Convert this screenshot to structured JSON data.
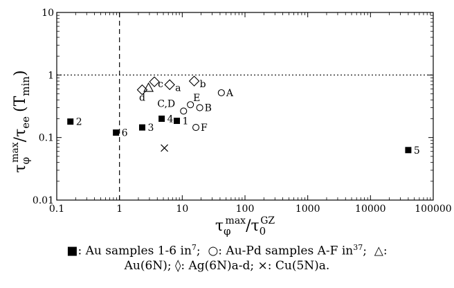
{
  "chart_data": {
    "type": "scatter",
    "xscale": "log",
    "yscale": "log",
    "xlim": [
      0.1,
      100000
    ],
    "ylim": [
      0.01,
      10
    ],
    "xticks": [
      "0.1",
      "1",
      "10",
      "100",
      "1000",
      "10000",
      "100000"
    ],
    "yticks": [
      "0.01",
      "0.1",
      "1",
      "10"
    ],
    "ylabel": {
      "base": "τ",
      "sub": "φ",
      "sup": "max",
      "tail": "/τ",
      "sub2": "ee",
      "paren": "(T",
      "parensub": "min",
      "close": ")"
    },
    "xlabel": {
      "base": "τ",
      "sub": "φ",
      "sup": "max",
      "tail": "/τ",
      "sub2": "0",
      "sup2": "GZ"
    },
    "reference_lines": [
      {
        "orientation": "vertical",
        "value": 1,
        "style": "dashed"
      },
      {
        "orientation": "horizontal",
        "value": 1,
        "style": "dotted"
      }
    ],
    "series": [
      {
        "marker": "filled-square",
        "color": "#000000",
        "points": [
          {
            "x": 0.165,
            "y": 0.18,
            "label": "2"
          },
          {
            "x": 0.88,
            "y": 0.12,
            "label": "6"
          },
          {
            "x": 2.3,
            "y": 0.145,
            "label": "3"
          },
          {
            "x": 4.7,
            "y": 0.2,
            "label": "4"
          },
          {
            "x": 8.2,
            "y": 0.185,
            "label": "1"
          },
          {
            "x": 40000,
            "y": 0.063,
            "label": "5"
          }
        ]
      },
      {
        "marker": "open-circle",
        "color": "#000000",
        "points": [
          {
            "x": 42,
            "y": 0.52,
            "label": "A"
          },
          {
            "x": 19,
            "y": 0.3,
            "label": "B"
          },
          {
            "x": 10.5,
            "y": 0.265,
            "label": "C,D"
          },
          {
            "x": 13.5,
            "y": 0.335,
            "label": "E"
          },
          {
            "x": 16.5,
            "y": 0.145,
            "label": "F"
          }
        ]
      },
      {
        "marker": "open-triangle",
        "color": "#000000",
        "points": [
          {
            "x": 2.9,
            "y": 0.62,
            "label": ""
          }
        ]
      },
      {
        "marker": "open-diamond",
        "color": "#000000",
        "points": [
          {
            "x": 6.3,
            "y": 0.7,
            "label": "a"
          },
          {
            "x": 15.5,
            "y": 0.8,
            "label": "b"
          },
          {
            "x": 3.6,
            "y": 0.78,
            "label": "c"
          },
          {
            "x": 2.3,
            "y": 0.58,
            "label": "d"
          }
        ]
      },
      {
        "marker": "cross",
        "color": "#000000",
        "points": [
          {
            "x": 5.2,
            "y": 0.068,
            "label": ""
          }
        ]
      }
    ]
  },
  "caption": {
    "line1": {
      "sq_sym": "■",
      "t1": ": Au samples 1-6 in",
      "ref1": "7",
      "t2": "; ",
      "circ_sym": "○",
      "t3": ": Au-Pd samples A-F in",
      "ref2": "37",
      "t4": "; ",
      "tri_sym": "△",
      "t5": ":"
    },
    "line2": {
      "t1": "Au(6N); ",
      "dia_sym": "◊",
      "t2": ": Ag(6N)a-d; ",
      "cross_sym": "×",
      "t3": ": Cu(5N)a."
    }
  }
}
